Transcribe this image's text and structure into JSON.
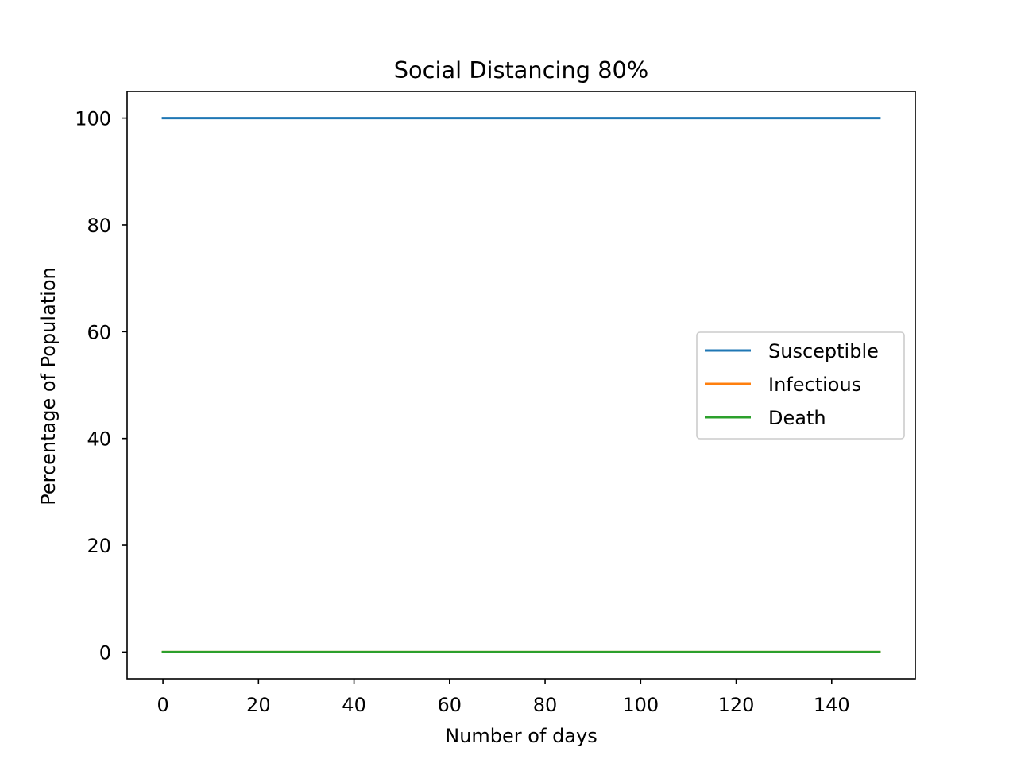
{
  "chart_data": {
    "type": "line",
    "title": "Social Distancing 80%",
    "xlabel": "Number of days",
    "ylabel": "Percentage of Population",
    "xlim": [
      -7.5,
      157.5
    ],
    "ylim": [
      -5,
      105
    ],
    "xticks": [
      0,
      20,
      40,
      60,
      80,
      100,
      120,
      140
    ],
    "yticks": [
      0,
      20,
      40,
      60,
      80,
      100
    ],
    "grid": false,
    "legend_position": "center-right",
    "series": [
      {
        "name": "Susceptible",
        "color": "#1f77b4",
        "x": [
          0,
          150
        ],
        "y": [
          100,
          100
        ]
      },
      {
        "name": "Infectious",
        "color": "#ff7f0e",
        "x": [
          0,
          150
        ],
        "y": [
          0,
          0
        ]
      },
      {
        "name": "Death",
        "color": "#2ca02c",
        "x": [
          0,
          150
        ],
        "y": [
          0,
          0
        ]
      }
    ]
  }
}
